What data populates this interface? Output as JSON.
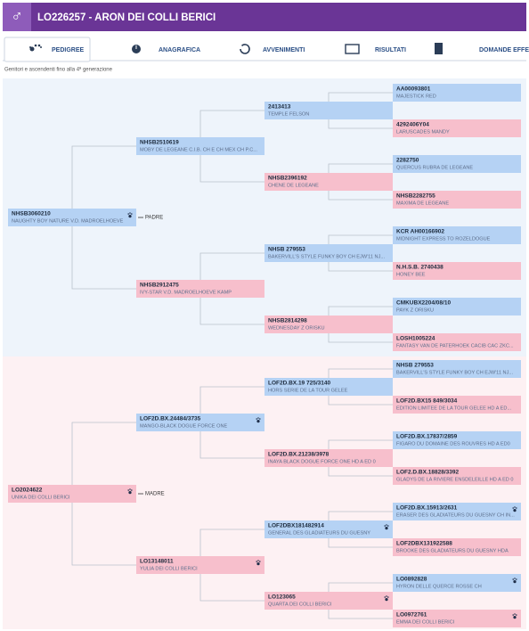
{
  "header": {
    "icon": "♂",
    "title": "LO226257 - ARON DEI COLLI BERICI"
  },
  "tabs": [
    "PEDIGREE",
    "ANAGRAFICA",
    "AVVENIMENTI",
    "RISULTATI",
    "DOMANDE EFFETTUATE"
  ],
  "subtitle": "Genitori e ascendenti fino alla 4ª generazione",
  "pedigree": {
    "sire": {
      "label": "PADRE",
      "code": "NHSB3060210",
      "name": "NAUGHTY BOY NATURE V.D. MADROELHOEVE",
      "icon": true,
      "parents": [
        {
          "code": "NHSB2510619",
          "name": "MOBY DE LEGEANE C.I.B. CH E CH MEX CH P.C...",
          "parents": [
            {
              "code": "2413413",
              "name": "TEMPLE FELSON",
              "parents": [
                {
                  "code": "AA00093801",
                  "name": "MAJESTICK RED"
                },
                {
                  "code": "4292406Y04",
                  "name": "LARUSCADES MANDY"
                }
              ]
            },
            {
              "code": "NHSB2396192",
              "name": "CHENE DE LEGEANE",
              "parents": [
                {
                  "code": "2282750",
                  "name": "QUERCUS RUBRA DE LEGEANE"
                },
                {
                  "code": "NHSB2282755",
                  "name": "MAXIMA DE LEGEANE"
                }
              ]
            }
          ]
        },
        {
          "code": "NHSB2912475",
          "name": "IVY-STAR V.D. MADROELHOEVE KAMP",
          "parents": [
            {
              "code": "NHSB 279553",
              "name": "BAKERVILL'S STYLE FUNKY BOY CH EJW'11 NJ...",
              "parents": [
                {
                  "code": "KCR AH00166902",
                  "name": "MIDNIGHT EXPRESS TO ROZELDOGUE"
                },
                {
                  "code": "N.H.S.B. 2740438",
                  "name": "HONEY BEE"
                }
              ]
            },
            {
              "code": "NHSB2814298",
              "name": "WEDNESDAY Z ORISKU",
              "parents": [
                {
                  "code": "CMKUBX2204/08/10",
                  "name": "PAYK Z ORISKU"
                },
                {
                  "code": "LOSH1005224",
                  "name": "FANTASY VAN DE PATERHOEK CACIB CAC ZKC..."
                }
              ]
            }
          ]
        }
      ]
    },
    "dam": {
      "label": "MADRE",
      "code": "LO2024622",
      "name": "UNIKA DEI COLLI BERICI",
      "icon": true,
      "parents": [
        {
          "code": "LOF2D.BX.24484/3735",
          "name": "MANGO-BLACK DOGUE FORCE ONE",
          "icon": true,
          "parents": [
            {
              "code": "LOF2D.BX.19 725/3140",
              "name": "HORS SERIE DE LA TOUR GELEE",
              "parents": [
                {
                  "code": "NHSB 279553",
                  "name": "BAKERVILL'S STYLE FUNKY BOY CH EJW'11 NJ..."
                },
                {
                  "code": "LOF2D.BX15 849/3034",
                  "name": "EDITION LIMITEE DE LA TOUR GELEE HD A ED..."
                }
              ]
            },
            {
              "code": "LOF2D.BX.21238/3978",
              "name": "INAYA BLACK DOGUE FORCE ONE HD A ED 0",
              "parents": [
                {
                  "code": "LOF2D.BX.17837/2859",
                  "name": "FIGARO DU DOMAINE DES ROUVRES HD A ED0"
                },
                {
                  "code": "LOF2.D.BX.18828/3392",
                  "name": "GLADYS DE LA RIVIERE ENSDELEILLE HD A ED 0"
                }
              ]
            }
          ]
        },
        {
          "code": "LO13148011",
          "name": "YULIA DEI COLLI BERICI",
          "icon": true,
          "parents": [
            {
              "code": "LOF2DBX181482914",
              "name": "GENERAL DES GLADIATEURS DU GUESNY",
              "icon": true,
              "parents": [
                {
                  "code": "LOF2D.BX.15913/2631",
                  "name": "ERASER DES GLADIATEURS DU GUESNY CH IN...",
                  "icon": true
                },
                {
                  "code": "LOF2DBX131922588",
                  "name": "BROOKE DES GLADIATEURS DU GUESNY HDA"
                }
              ]
            },
            {
              "code": "LO123065",
              "name": "QUARTA DEI COLLI BERICI",
              "icon": true,
              "parents": [
                {
                  "code": "LO0892828",
                  "name": "HYRON DELLE QUERCE ROSSE CH",
                  "icon": true
                },
                {
                  "code": "LO0972761",
                  "name": "EMMA DEI COLLI BERICI",
                  "icon": true
                }
              ]
            }
          ]
        }
      ]
    }
  }
}
